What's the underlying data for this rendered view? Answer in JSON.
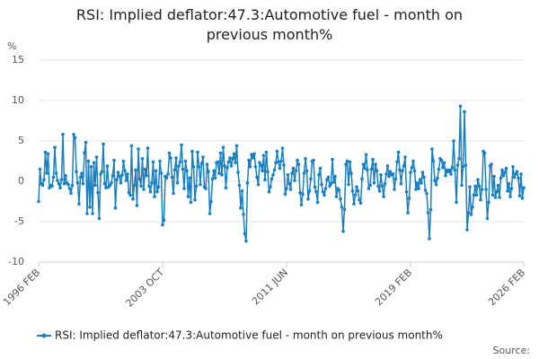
{
  "chart_data": {
    "type": "line",
    "title": "RSI: Implied deflator:47.3:Automotive fuel - month on previous month%",
    "y_label": "%",
    "source": "Source:",
    "ylim": [
      -10,
      15
    ],
    "yticks": [
      -10,
      -5,
      0,
      5,
      10,
      15
    ],
    "grid": true,
    "categories": [
      "1996 FEB",
      null,
      null,
      null,
      null,
      null,
      null,
      null,
      null,
      null,
      null,
      null,
      null,
      null,
      null,
      null,
      null,
      null,
      null,
      null,
      null,
      null,
      null,
      null,
      null,
      null,
      null,
      null,
      null,
      null,
      null,
      null,
      null,
      null,
      null,
      null,
      null,
      null,
      null,
      null,
      null,
      null,
      null,
      null,
      null,
      null,
      null,
      null,
      null,
      null,
      null,
      null,
      null,
      null,
      null,
      null,
      null,
      null,
      null,
      null,
      null,
      null,
      null,
      null,
      null,
      null,
      null,
      null,
      null,
      null,
      null,
      null,
      null,
      null,
      null,
      null,
      null,
      null,
      null,
      null,
      null,
      null,
      null,
      null,
      null,
      null,
      null,
      null,
      null,
      null,
      null,
      null,
      "2003 OCT",
      null,
      null,
      null,
      null,
      null,
      null,
      null,
      null,
      null,
      null,
      null,
      null,
      null,
      null,
      null,
      null,
      null,
      null,
      null,
      null,
      null,
      null,
      null,
      null,
      null,
      null,
      null,
      null,
      null,
      null,
      null,
      null,
      null,
      null,
      null,
      null,
      null,
      null,
      null,
      null,
      null,
      null,
      null,
      null,
      null,
      null,
      null,
      null,
      null,
      null,
      null,
      null,
      null,
      null,
      null,
      null,
      null,
      null,
      null,
      null,
      null,
      null,
      null,
      null,
      null,
      null,
      null,
      null,
      null,
      null,
      null,
      null,
      null,
      null,
      null,
      null,
      null,
      null,
      null,
      null,
      null,
      null,
      null,
      null,
      null,
      null,
      null,
      null,
      null,
      null,
      null,
      "2011 JUN",
      null,
      null,
      null,
      null,
      null,
      null,
      null,
      null,
      null,
      null,
      null,
      null,
      null,
      null,
      null,
      null,
      null,
      null,
      null,
      null,
      null,
      null,
      null,
      null,
      null,
      null,
      null,
      null,
      null,
      null,
      null,
      null,
      null,
      null,
      null,
      null,
      null,
      null,
      null,
      null,
      null,
      null,
      null,
      null,
      null,
      null,
      null,
      null,
      null,
      null,
      null,
      null,
      null,
      null,
      null,
      null,
      null,
      null,
      null,
      null,
      null,
      null,
      null,
      null,
      null,
      null,
      null,
      null,
      null,
      null,
      null,
      null,
      null,
      null,
      null,
      null,
      null,
      null,
      null,
      null,
      null,
      null,
      null,
      null,
      null,
      null,
      null,
      null,
      null,
      null,
      null,
      "2019 FEB",
      null,
      null,
      null,
      null,
      null,
      null,
      null,
      null,
      null,
      null,
      null,
      null,
      null,
      null,
      null,
      null,
      null,
      null,
      null,
      null,
      null,
      null,
      null,
      null,
      null,
      null,
      null,
      null,
      null,
      null,
      null,
      null,
      null,
      null,
      null,
      null,
      null,
      null,
      null,
      null,
      null,
      null,
      null,
      null,
      null,
      null,
      null,
      null,
      null,
      null,
      null,
      null,
      null,
      null,
      null,
      null,
      null,
      null,
      null,
      null,
      null,
      null,
      null,
      null,
      null,
      null,
      null,
      null,
      null,
      null,
      null,
      null,
      null,
      null,
      null,
      null,
      null,
      null,
      null,
      null,
      null,
      null,
      null,
      "2026 FEB"
    ],
    "series": [
      {
        "name": "RSI: Implied deflator:47.3:Automotive fuel - month on previous month%",
        "color": "#1a7fbf",
        "values": [
          -2.5,
          1.5,
          -0.3,
          -0.5,
          0.2,
          3.6,
          1.0,
          3.4,
          -0.8,
          -0.5,
          -0.6,
          0.5,
          4.2,
          1.0,
          0.1,
          -0.3,
          -0.8,
          0.2,
          5.8,
          -0.3,
          0.7,
          -0.2,
          -0.4,
          -0.9,
          -1.5,
          -0.5,
          5.8,
          5.4,
          1.2,
          -0.2,
          -2.8,
          0.5,
          1.0,
          -0.3,
          3.5,
          4.8,
          -4.0,
          2.5,
          -3.2,
          1.8,
          -4.0,
          2.3,
          -0.5,
          3.0,
          -1.4,
          -4.6,
          0.9,
          1.2,
          4.6,
          -0.3,
          -0.8,
          1.9,
          -0.7,
          -0.5,
          -0.2,
          0.7,
          2.6,
          -3.3,
          0.2,
          1.1,
          0.6,
          -0.2,
          0.8,
          2.5,
          1.3,
          0.1,
          0.9,
          -1.4,
          -1.7,
          4.4,
          -2.2,
          -0.5,
          1.4,
          -3.0,
          4.0,
          0.3,
          -0.6,
          2.8,
          -1.0,
          1.5,
          0.7,
          4.1,
          -0.6,
          -1.3,
          -0.2,
          2.4,
          -1.9,
          1.3,
          -1.3,
          -0.7,
          2.5,
          1.0,
          -5.4,
          -4.8,
          0.6,
          0.4,
          0.9,
          3.5,
          2.9,
          0.5,
          -1.5,
          1.4,
          2.9,
          -0.2,
          1.9,
          2.4,
          4.5,
          1.5,
          -0.9,
          2.5,
          1.3,
          -1.9,
          0.4,
          -2.6,
          3.7,
          1.8,
          -2.3,
          -0.6,
          3.6,
          1.8,
          -0.4,
          2.2,
          3.0,
          -0.7,
          -0.9,
          2.1,
          1.2,
          -4.0,
          -2.5,
          0.3,
          1.3,
          0.4,
          2.3,
          2.4,
          1.0,
          3.5,
          0.8,
          4.2,
          1.9,
          -0.8,
          1.7,
          2.4,
          2.9,
          1.9,
          2.8,
          3.4,
          2.3,
          4.4,
          1.1,
          -0.5,
          -3.3,
          -1.2,
          -4.1,
          -6.5,
          -7.4,
          -0.2,
          2.6,
          1.8,
          3.3,
          2.9,
          3.4,
          1.8,
          0.5,
          -0.4,
          2.3,
          2.0,
          1.3,
          3.2,
          0.2,
          3.6,
          1.2,
          -1.3,
          -0.7,
          0.3,
          0.8,
          1.4,
          2.3,
          3.7,
          2.4,
          1.6,
          2.5,
          4.1,
          2.0,
          -1.6,
          -0.9,
          0.8,
          -0.3,
          -1.0,
          1.0,
          1.6,
          0.1,
          1.3,
          2.6,
          2.1,
          -1.4,
          -2.9,
          -1.6,
          1.0,
          2.8,
          1.3,
          -2.2,
          -1.2,
          0.3,
          2.5,
          2.6,
          -0.7,
          -1.3,
          -2.6,
          0.8,
          1.6,
          -0.4,
          -1.3,
          -1.7,
          -0.9,
          0.2,
          0.5,
          -0.6,
          -0.3,
          2.7,
          -0.1,
          0.6,
          -1.9,
          -0.9,
          -1.1,
          -2.2,
          -3.2,
          -6.2,
          -3.5,
          2.1,
          2.5,
          -0.4,
          2.4,
          1.0,
          -1.2,
          -2.8,
          -1.7,
          -0.7,
          -1.2,
          -2.3,
          -2.7,
          0.3,
          2.1,
          1.6,
          3.3,
          1.4,
          -0.9,
          -0.5,
          1.5,
          2.7,
          -0.2,
          2.1,
          1.3,
          -0.6,
          -1.2,
          0.8,
          -0.6,
          -1.9,
          -0.3,
          0.9,
          1.9,
          0.6,
          1.2,
          0.8,
          0.9,
          -1.0,
          0.3,
          2.4,
          3.6,
          1.4,
          -0.3,
          1.3,
          1.9,
          3.0,
          -1.3,
          -3.9,
          -2.1,
          1.1,
          1.7,
          2.5,
          1.3,
          -1.0,
          -0.2,
          -0.9,
          0.2,
          -0.2,
          1.1,
          0.5,
          -1.1,
          -1.5,
          -3.9,
          -7.1,
          -3.5,
          4.0,
          2.5,
          0.1,
          -0.4,
          0.4,
          1.5,
          2.8,
          2.6,
          1.7,
          2.3,
          0.7,
          1.4,
          1.2,
          1.4,
          0.9,
          1.7,
          5.0,
          1.4,
          -2.6,
          2.0,
          2.8,
          9.3,
          -0.5,
          1.8,
          8.6,
          2.0,
          -6.0,
          -3.9,
          -0.7,
          -4.1,
          -3.2,
          -1.7,
          -0.6,
          -1.7,
          0.2,
          -0.6,
          -2.3,
          -1.0,
          3.7,
          3.5,
          -1.0,
          -4.6,
          -2.6,
          1.9,
          2.1,
          -1.7,
          0.6,
          -2.0,
          -1.3,
          -0.5,
          -2.0,
          0.4,
          1.4,
          0.7,
          1.1,
          1.6,
          -1.2,
          -0.3,
          -1.9,
          -0.9,
          1.8,
          0.5,
          0.9,
          1.2,
          0.4,
          -1.8,
          0.9,
          -2.1,
          -0.8
        ]
      }
    ]
  }
}
